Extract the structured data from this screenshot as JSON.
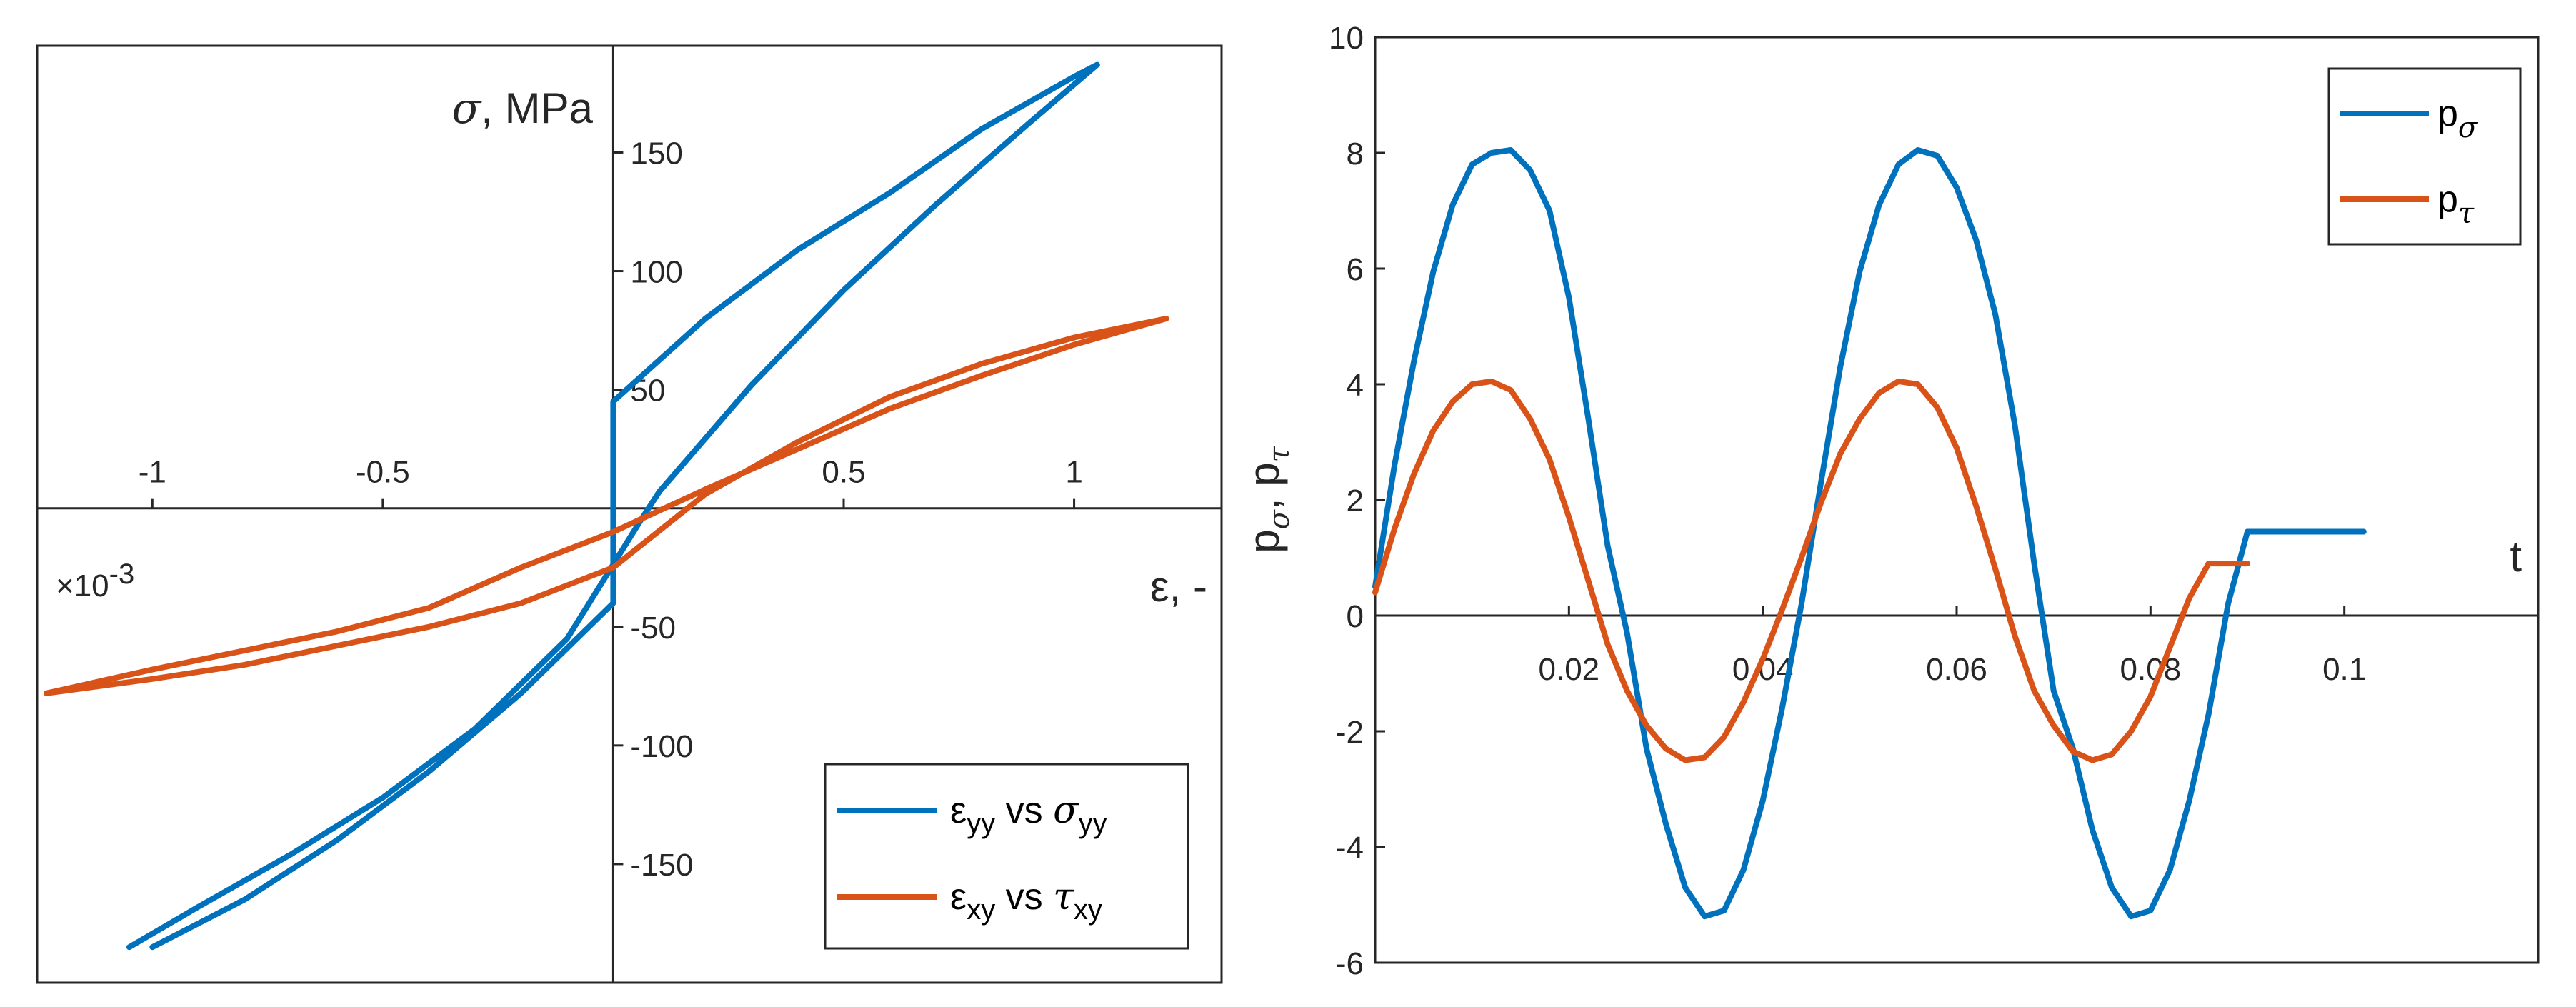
{
  "chart_data": [
    {
      "type": "line",
      "xlabel_symbol": "ε",
      "xlabel_unit": ", -",
      "ylabel_symbol": "σ",
      "ylabel_unit": ", MPa",
      "x_exponent": "×10",
      "x_exponent_power": "-3",
      "xlim": [
        -1.25,
        1.32
      ],
      "ylim": [
        -200,
        195
      ],
      "x_ticks": [
        -1,
        -0.5,
        0.5,
        1
      ],
      "x_tick_labels": [
        "-1",
        "-0.5",
        "0.5",
        "1"
      ],
      "y_ticks": [
        -150,
        -100,
        -50,
        50,
        100,
        150
      ],
      "y_tick_labels": [
        "-150",
        "-100",
        "-50",
        "50",
        "100",
        "150"
      ],
      "legend_position": "bottom-right",
      "series": [
        {
          "name_main": "ε",
          "name_sub": "yy",
          "name_mid": " vs ",
          "name_sym": "σ",
          "name_sym_sub": "yy",
          "color": "#0072BD",
          "x": [
            -1.0,
            -0.8,
            -0.6,
            -0.4,
            -0.2,
            -0.0,
            0.0,
            0.2,
            0.4,
            0.6,
            0.8,
            1.0,
            1.05,
            0.9,
            0.7,
            0.5,
            0.3,
            0.1,
            0.06,
            -0.1,
            -0.3,
            -0.5,
            -0.7,
            -0.9,
            -1.05
          ],
          "y": [
            -185,
            -165,
            -140,
            -111,
            -78,
            -40,
            45,
            80,
            109,
            133,
            160,
            182,
            187,
            162,
            128,
            92,
            52,
            7,
            -5,
            -55,
            -93,
            -122,
            -146,
            -168,
            -185
          ]
        },
        {
          "name_main": "ε",
          "name_sub": "xy",
          "name_mid": " vs ",
          "name_sym": "τ",
          "name_sym_sub": "xy",
          "color": "#D95319",
          "x": [
            -1.23,
            -1.0,
            -0.8,
            -0.6,
            -0.4,
            -0.2,
            0.0,
            0.2,
            0.4,
            0.6,
            0.8,
            1.0,
            1.2,
            1.0,
            0.8,
            0.6,
            0.4,
            0.2,
            0.0,
            -0.2,
            -0.4,
            -0.6,
            -0.8,
            -1.0,
            -1.23
          ],
          "y": [
            -78,
            -72,
            -66,
            -58,
            -50,
            -40,
            -25,
            6,
            28,
            47,
            61,
            72,
            80,
            69,
            56,
            42,
            25,
            8,
            -10,
            -25,
            -42,
            -52,
            -60,
            -68,
            -78
          ]
        }
      ]
    },
    {
      "type": "line",
      "xlabel": "t",
      "ylabel_main_1": "p",
      "ylabel_sub_1": "σ",
      "ylabel_sep": ", ",
      "ylabel_main_2": "p",
      "ylabel_sub_2": "τ",
      "xlim": [
        0,
        0.12
      ],
      "ylim": [
        -6,
        10
      ],
      "x_ticks": [
        0.02,
        0.04,
        0.06,
        0.08,
        0.1
      ],
      "x_tick_labels": [
        "0.02",
        "0.04",
        "0.06",
        "0.08",
        "0.1"
      ],
      "y_ticks": [
        -6,
        -4,
        -2,
        0,
        2,
        4,
        6,
        8,
        10
      ],
      "y_tick_labels": [
        "-6",
        "-4",
        "-2",
        "0",
        "2",
        "4",
        "6",
        "8",
        "10"
      ],
      "legend_position": "top-right",
      "series": [
        {
          "name_main": "p",
          "name_sub": "σ",
          "color": "#0072BD",
          "x": [
            0.0,
            0.002,
            0.004,
            0.006,
            0.008,
            0.01,
            0.012,
            0.014,
            0.016,
            0.018,
            0.02,
            0.022,
            0.024,
            0.026,
            0.028,
            0.03,
            0.032,
            0.034,
            0.036,
            0.038,
            0.04,
            0.042,
            0.044,
            0.046,
            0.048,
            0.05,
            0.052,
            0.054,
            0.056,
            0.058,
            0.06,
            0.062,
            0.064,
            0.066,
            0.068,
            0.07,
            0.072,
            0.074,
            0.076,
            0.078,
            0.08,
            0.082,
            0.084,
            0.086,
            0.088,
            0.09,
            0.092,
            0.094,
            0.096,
            0.098,
            0.1,
            0.102
          ],
          "y": [
            0.5,
            2.6,
            4.4,
            5.95,
            7.1,
            7.8,
            8.0,
            8.05,
            7.7,
            7.0,
            5.5,
            3.4,
            1.2,
            -0.3,
            -2.3,
            -3.6,
            -4.7,
            -5.2,
            -5.1,
            -4.4,
            -3.2,
            -1.6,
            0.2,
            2.3,
            4.3,
            5.95,
            7.1,
            7.8,
            8.05,
            7.95,
            7.4,
            6.5,
            5.2,
            3.3,
            0.9,
            -1.3,
            -2.3,
            -3.7,
            -4.7,
            -5.2,
            -5.1,
            -4.4,
            -3.2,
            -1.7,
            0.2,
            1.45,
            1.45,
            1.45,
            1.45,
            1.45,
            1.45,
            1.45
          ]
        },
        {
          "name_main": "p",
          "name_sub": "τ",
          "color": "#D95319",
          "x": [
            0.0,
            0.002,
            0.004,
            0.006,
            0.008,
            0.01,
            0.012,
            0.014,
            0.016,
            0.018,
            0.02,
            0.022,
            0.024,
            0.026,
            0.028,
            0.03,
            0.032,
            0.034,
            0.036,
            0.038,
            0.04,
            0.042,
            0.044,
            0.046,
            0.048,
            0.05,
            0.052,
            0.054,
            0.056,
            0.058,
            0.06,
            0.062,
            0.064,
            0.066,
            0.068,
            0.07,
            0.072,
            0.074,
            0.076,
            0.078,
            0.08,
            0.082,
            0.084,
            0.086,
            0.088,
            0.09
          ],
          "y": [
            0.4,
            1.5,
            2.45,
            3.2,
            3.7,
            4.0,
            4.05,
            3.9,
            3.4,
            2.7,
            1.7,
            0.6,
            -0.5,
            -1.3,
            -1.9,
            -2.3,
            -2.5,
            -2.45,
            -2.1,
            -1.5,
            -0.75,
            0.1,
            1.0,
            1.95,
            2.8,
            3.4,
            3.85,
            4.05,
            4.0,
            3.6,
            2.9,
            1.9,
            0.8,
            -0.35,
            -1.3,
            -1.9,
            -2.35,
            -2.5,
            -2.4,
            -2.0,
            -1.4,
            -0.55,
            0.3,
            0.9,
            0.9,
            0.9
          ]
        }
      ]
    }
  ]
}
